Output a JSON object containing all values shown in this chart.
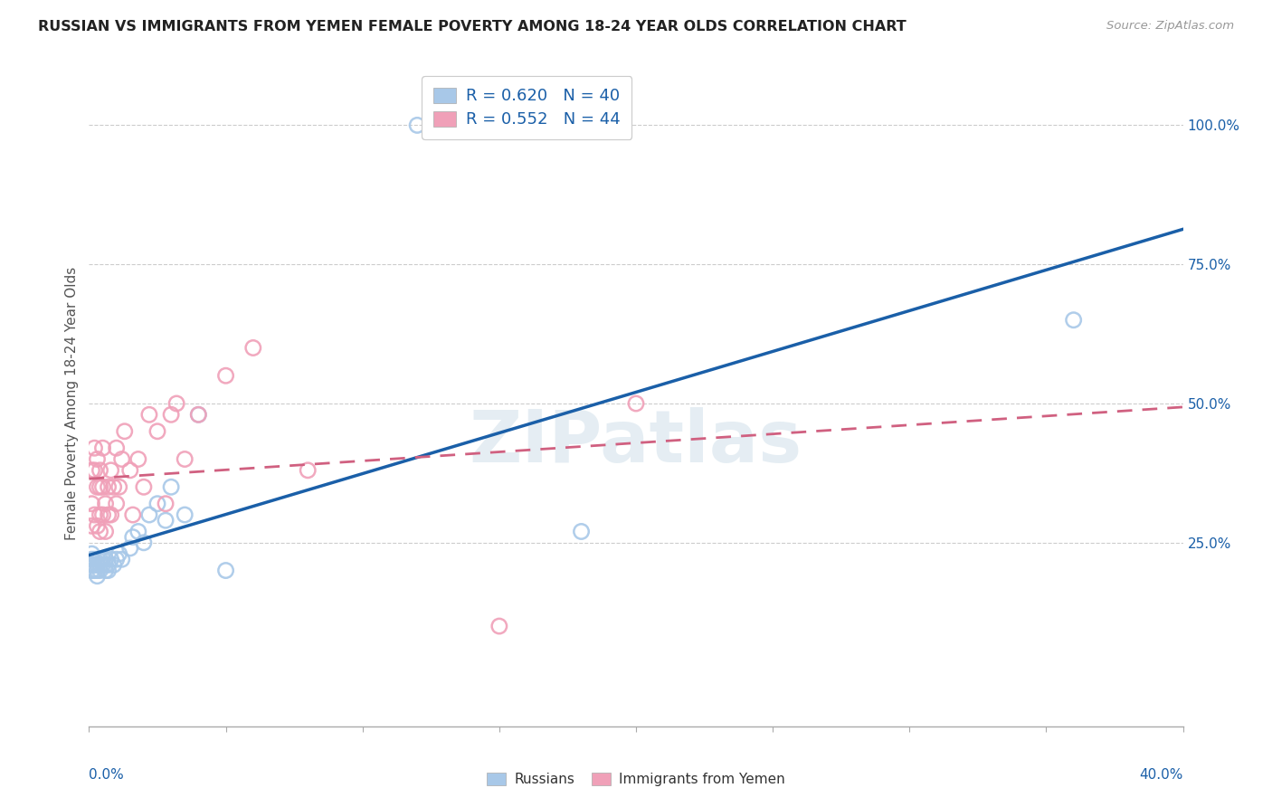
{
  "title": "RUSSIAN VS IMMIGRANTS FROM YEMEN FEMALE POVERTY AMONG 18-24 YEAR OLDS CORRELATION CHART",
  "source": "Source: ZipAtlas.com",
  "ylabel": "Female Poverty Among 18-24 Year Olds",
  "watermark": "ZIPatlas",
  "legend1_r": "0.620",
  "legend1_n": "40",
  "legend2_r": "0.552",
  "legend2_n": "44",
  "legend_bottom1": "Russians",
  "legend_bottom2": "Immigrants from Yemen",
  "russian_color": "#a8c8e8",
  "yemen_color": "#f0a0b8",
  "russian_line_color": "#1a5fa8",
  "yemen_line_color": "#d06080",
  "xlim": [
    0.0,
    0.4
  ],
  "ylim": [
    -0.08,
    1.08
  ],
  "yticks": [
    0.25,
    0.5,
    0.75,
    1.0
  ],
  "xtick_positions": [
    0.0,
    0.05,
    0.1,
    0.15,
    0.2,
    0.25,
    0.3,
    0.35,
    0.4
  ],
  "background_color": "#ffffff",
  "grid_color": "#cccccc",
  "russians_x": [
    0.001,
    0.001,
    0.001,
    0.001,
    0.002,
    0.002,
    0.002,
    0.003,
    0.003,
    0.003,
    0.003,
    0.004,
    0.004,
    0.004,
    0.005,
    0.005,
    0.006,
    0.006,
    0.006,
    0.007,
    0.007,
    0.008,
    0.009,
    0.01,
    0.011,
    0.012,
    0.015,
    0.016,
    0.018,
    0.02,
    0.022,
    0.025,
    0.028,
    0.03,
    0.035,
    0.04,
    0.05,
    0.18,
    0.36,
    0.12
  ],
  "russians_y": [
    0.2,
    0.22,
    0.21,
    0.23,
    0.22,
    0.2,
    0.21,
    0.21,
    0.22,
    0.2,
    0.19,
    0.22,
    0.2,
    0.21,
    0.22,
    0.21,
    0.22,
    0.21,
    0.2,
    0.21,
    0.2,
    0.22,
    0.21,
    0.22,
    0.23,
    0.22,
    0.24,
    0.26,
    0.27,
    0.25,
    0.3,
    0.32,
    0.29,
    0.35,
    0.3,
    0.48,
    0.2,
    0.27,
    0.65,
    1.0
  ],
  "yemen_x": [
    0.001,
    0.001,
    0.001,
    0.002,
    0.002,
    0.002,
    0.003,
    0.003,
    0.003,
    0.004,
    0.004,
    0.004,
    0.004,
    0.005,
    0.005,
    0.005,
    0.006,
    0.006,
    0.007,
    0.007,
    0.008,
    0.008,
    0.009,
    0.01,
    0.01,
    0.011,
    0.012,
    0.013,
    0.015,
    0.016,
    0.018,
    0.02,
    0.022,
    0.025,
    0.028,
    0.03,
    0.032,
    0.035,
    0.04,
    0.05,
    0.06,
    0.08,
    0.15,
    0.2
  ],
  "yemen_y": [
    0.28,
    0.32,
    0.38,
    0.3,
    0.38,
    0.42,
    0.28,
    0.35,
    0.4,
    0.27,
    0.3,
    0.35,
    0.38,
    0.3,
    0.35,
    0.42,
    0.27,
    0.32,
    0.3,
    0.35,
    0.3,
    0.38,
    0.35,
    0.32,
    0.42,
    0.35,
    0.4,
    0.45,
    0.38,
    0.3,
    0.4,
    0.35,
    0.48,
    0.45,
    0.32,
    0.48,
    0.5,
    0.4,
    0.48,
    0.55,
    0.6,
    0.38,
    0.1,
    0.5
  ]
}
